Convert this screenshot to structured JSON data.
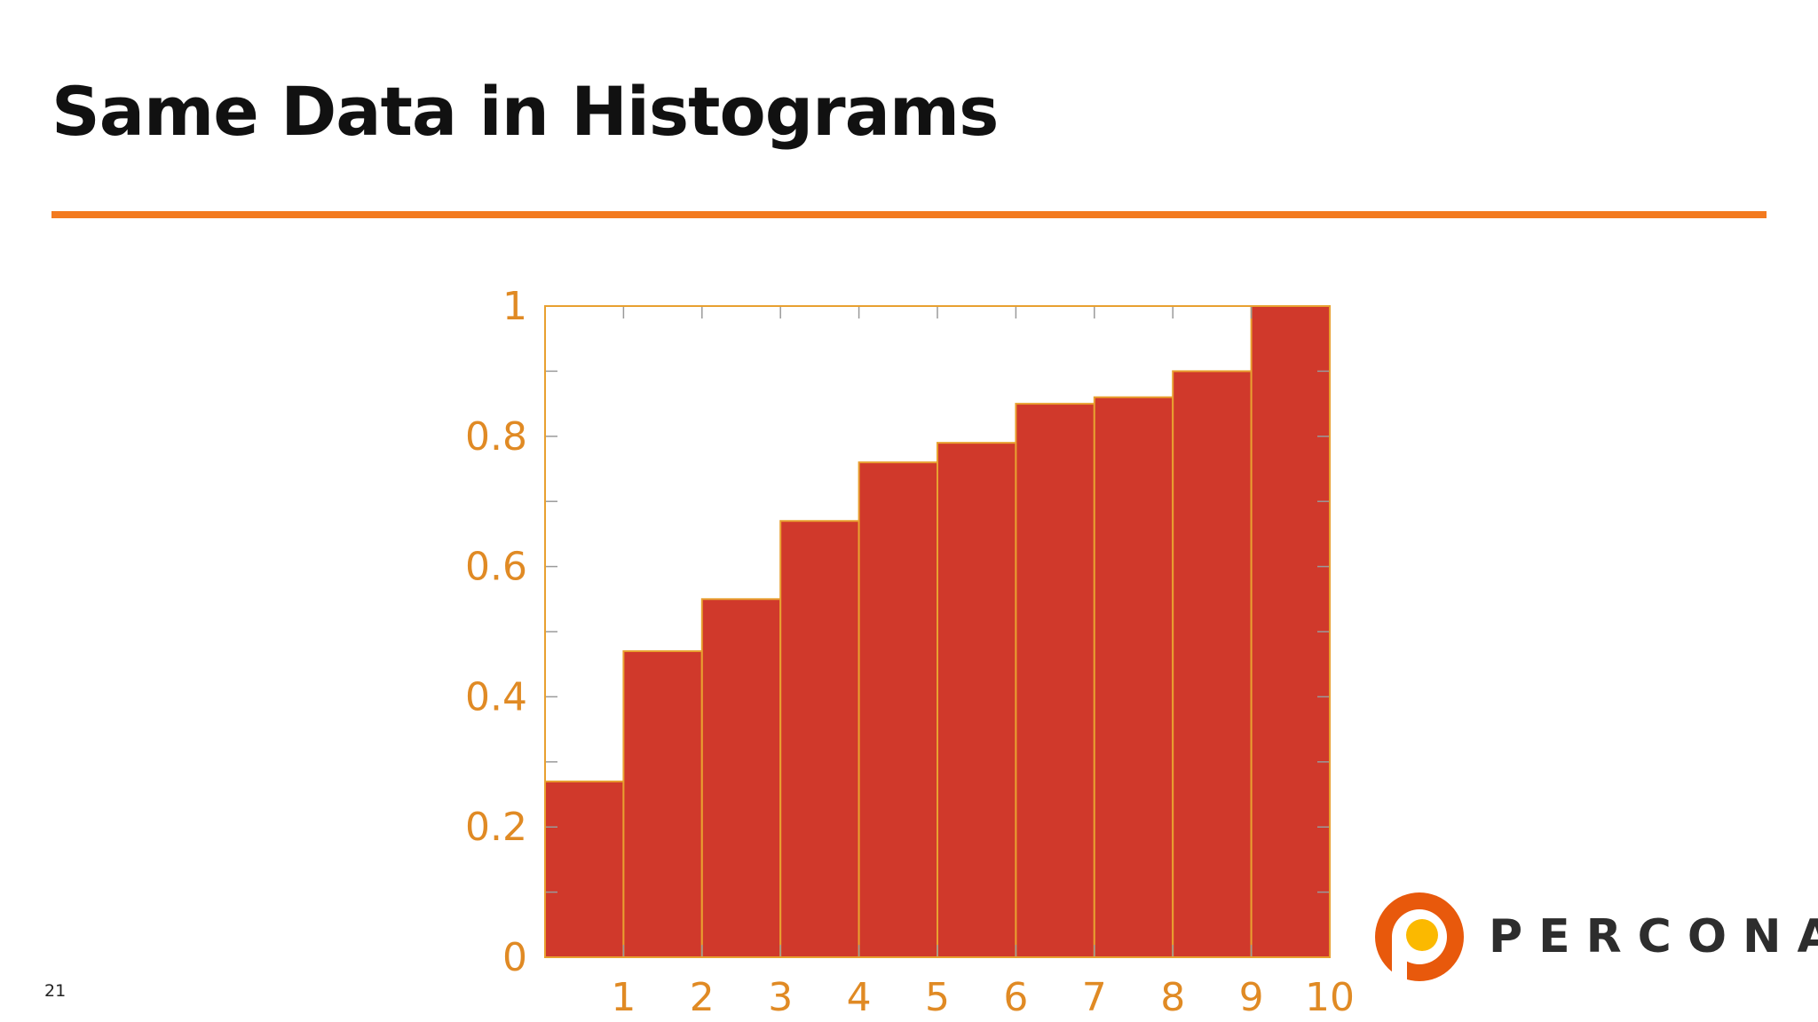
{
  "slide": {
    "title": "Same Data in Histograms",
    "page_number": "21"
  },
  "logo": {
    "text": "PERCONA",
    "icon": "percona-logo-icon"
  },
  "colors": {
    "accent": "#f37a1f",
    "bar_fill": "#d0392b",
    "bar_edge": "#e8a030",
    "axis": "#e08a24",
    "logo_orange": "#e8590c",
    "logo_yellow": "#fbb900",
    "logo_text": "#2d2d2d"
  },
  "chart_data": {
    "type": "bar",
    "categories": [
      "1",
      "2",
      "3",
      "4",
      "5",
      "6",
      "7",
      "8",
      "9",
      "10"
    ],
    "values": [
      0.27,
      0.47,
      0.55,
      0.67,
      0.76,
      0.79,
      0.85,
      0.86,
      0.9,
      1.0
    ],
    "x_ticks": [
      "1",
      "2",
      "3",
      "4",
      "5",
      "6",
      "7",
      "8",
      "9",
      "10"
    ],
    "xlim": [
      0,
      10
    ],
    "y_ticks": [
      "0",
      "0.2",
      "0.4",
      "0.6",
      "0.8",
      "1"
    ],
    "ylim": [
      0,
      1
    ],
    "y_minor_step": 0.1,
    "grid": false,
    "title": "",
    "xlabel": "",
    "ylabel": ""
  }
}
